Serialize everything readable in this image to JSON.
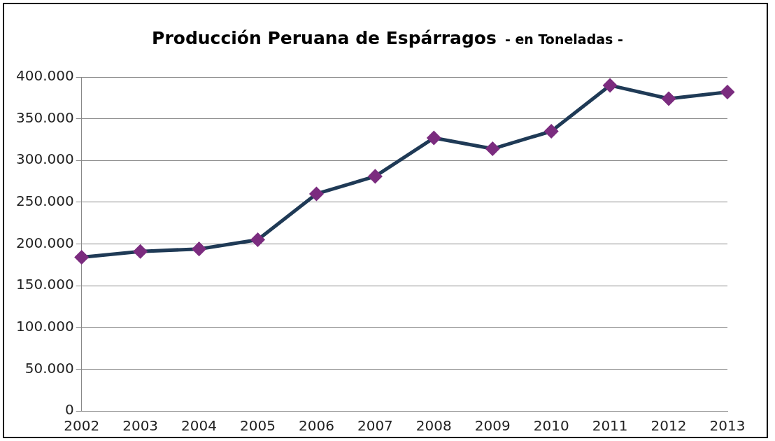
{
  "chart_data": {
    "type": "line",
    "title": "Producción Peruana de Espárragos",
    "subtitle": "- en Toneladas -",
    "categories": [
      "2002",
      "2003",
      "2004",
      "2005",
      "2006",
      "2007",
      "2008",
      "2009",
      "2010",
      "2011",
      "2012",
      "2013"
    ],
    "series": [
      {
        "color": "#1f3a56",
        "colors": [
          "#7b2c7f",
          "#7b2c7f",
          "#7b2c7f",
          "#7b2c7f",
          "#7b2c7f",
          "#7b2c7f",
          "#7b2c7f",
          "#7b2c7f",
          "#7b2c7f",
          "#7b2c7f",
          "#7b2c7f",
          "#7b2c7f"
        ],
        "values": [
          184000,
          191000,
          194000,
          205000,
          260000,
          281000,
          327000,
          314000,
          335000,
          390000,
          374000,
          382000
        ]
      }
    ],
    "marker": "diamond",
    "line_style": "solid",
    "ylim": [
      0,
      400000
    ],
    "yticks": [
      {
        "value": 0,
        "label": "0"
      },
      {
        "value": 50000,
        "label": "50.000"
      },
      {
        "value": 100000,
        "label": "100.000"
      },
      {
        "value": 150000,
        "label": "150.000"
      },
      {
        "value": 200000,
        "label": "200.000"
      },
      {
        "value": 250000,
        "label": "250.000"
      },
      {
        "value": 300000,
        "label": "300.000"
      },
      {
        "value": 350000,
        "label": "350.000"
      },
      {
        "value": 400000,
        "label": "400.000"
      }
    ],
    "grid": "y",
    "legend": false
  }
}
